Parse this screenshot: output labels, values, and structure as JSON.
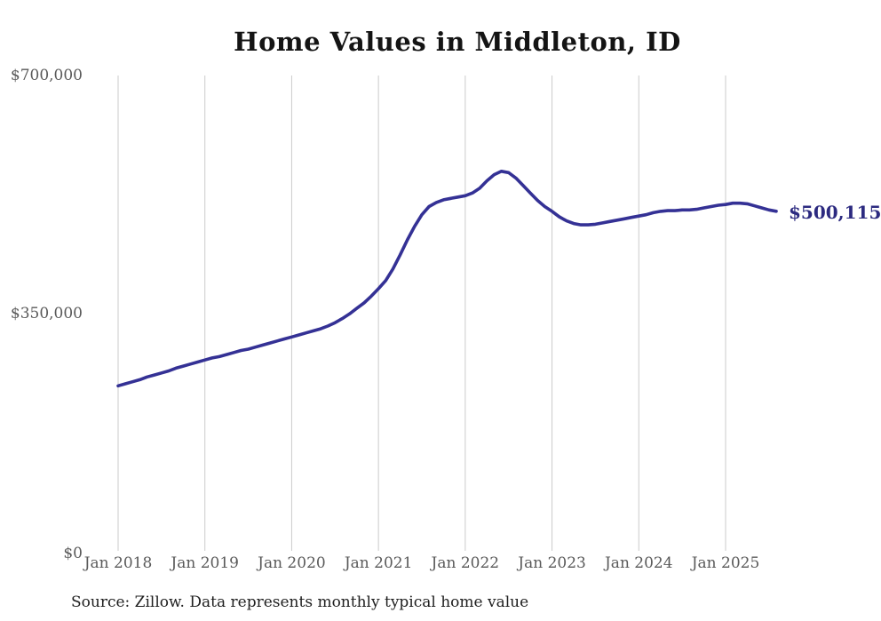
{
  "chart": {
    "title": "Home Values in Middleton, ID",
    "source_note": "Source: Zillow. Data represents monthly typical home value",
    "end_label": "$500,115",
    "colors": {
      "line": "#343195",
      "end_label": "#2c2a80",
      "grid": "#cbcbcb",
      "tick_text": "#5a5a5a",
      "title_text": "#141414"
    }
  },
  "chart_data": {
    "type": "line",
    "title": "Home Values in Middleton, ID",
    "xlabel": "",
    "ylabel": "",
    "x_unit": "month",
    "x_start_label": "Jan 2018",
    "x_tick_labels": [
      "Jan 2018",
      "Jan 2019",
      "Jan 2020",
      "Jan 2021",
      "Jan 2022",
      "Jan 2023",
      "Jan 2024",
      "Jan 2025"
    ],
    "y_ticks": [
      {
        "label": "$0",
        "value": 0
      },
      {
        "label": "$350,000",
        "value": 350000
      },
      {
        "label": "$700,000",
        "value": 700000
      }
    ],
    "ylim": [
      0,
      700000
    ],
    "grid": "vertical-only",
    "legend": "none",
    "last_point_label": "$500,115",
    "series": [
      {
        "name": "Monthly typical home value",
        "values": [
          243000,
          246000,
          249000,
          252000,
          256000,
          259000,
          262000,
          265000,
          269000,
          272000,
          275000,
          278000,
          281000,
          284000,
          286000,
          289000,
          292000,
          295000,
          297000,
          300000,
          303000,
          306000,
          309000,
          312000,
          315000,
          318000,
          321000,
          324000,
          327000,
          331000,
          336000,
          342000,
          349000,
          357000,
          365000,
          375000,
          386000,
          398000,
          415000,
          436000,
          458000,
          478000,
          495000,
          507000,
          513000,
          517000,
          519000,
          521000,
          523000,
          527000,
          534000,
          545000,
          554000,
          559000,
          557000,
          549000,
          538000,
          527000,
          516000,
          507000,
          500000,
          492000,
          486000,
          482000,
          480000,
          480000,
          481000,
          483000,
          485000,
          487000,
          489000,
          491000,
          493000,
          495000,
          498000,
          500000,
          501000,
          501000,
          502000,
          502000,
          503000,
          505000,
          507000,
          509000,
          510000,
          512000,
          512000,
          511000,
          508000,
          505000,
          502000,
          500115
        ]
      }
    ]
  }
}
